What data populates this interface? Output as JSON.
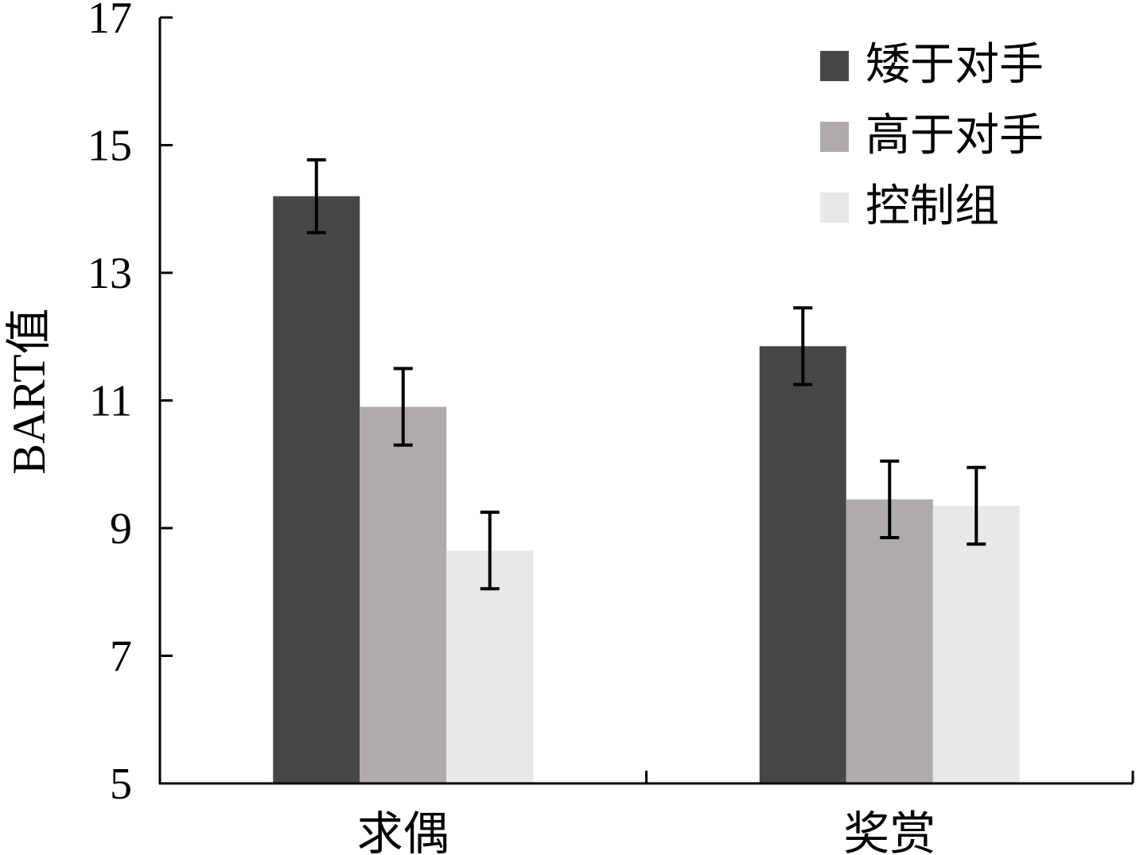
{
  "chart_data": {
    "type": "bar",
    "categories": [
      "求偶",
      "奖赏"
    ],
    "series": [
      {
        "name": "矮于对手",
        "color": "#474747",
        "values": [
          14.2,
          11.85
        ],
        "errors": [
          0.57,
          0.6
        ]
      },
      {
        "name": "高于对手",
        "color": "#afabad",
        "values": [
          10.9,
          9.45
        ],
        "errors": [
          0.6,
          0.6
        ]
      },
      {
        "name": "控制组",
        "color": "#e8e8e8",
        "values": [
          8.65,
          9.35
        ],
        "errors": [
          0.6,
          0.6
        ]
      }
    ],
    "ylabel": "BART值",
    "xlabel": "",
    "ylim": [
      5,
      17
    ],
    "yticks": [
      5,
      7,
      9,
      11,
      13,
      15,
      17
    ],
    "grid": false,
    "legend_position": "top-right"
  }
}
